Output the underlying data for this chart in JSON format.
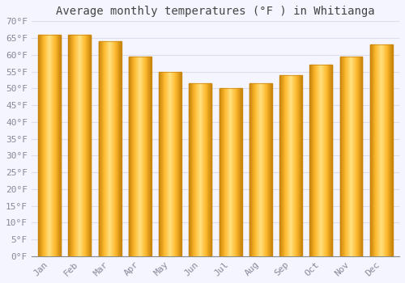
{
  "title": "Average monthly temperatures (°F ) in Whitianga",
  "months": [
    "Jan",
    "Feb",
    "Mar",
    "Apr",
    "May",
    "Jun",
    "Jul",
    "Aug",
    "Sep",
    "Oct",
    "Nov",
    "Dec"
  ],
  "values": [
    66,
    66,
    64,
    59.5,
    55,
    51.5,
    50,
    51.5,
    54,
    57,
    59.5,
    63
  ],
  "bar_color_main": "#FDB92E",
  "bar_color_edge": "#C8830A",
  "bar_color_light": "#FFDD88",
  "ylim": [
    0,
    70
  ],
  "yticks": [
    0,
    5,
    10,
    15,
    20,
    25,
    30,
    35,
    40,
    45,
    50,
    55,
    60,
    65,
    70
  ],
  "ytick_labels": [
    "0°F",
    "5°F",
    "10°F",
    "15°F",
    "20°F",
    "25°F",
    "30°F",
    "35°F",
    "40°F",
    "45°F",
    "50°F",
    "55°F",
    "60°F",
    "65°F",
    "70°F"
  ],
  "background_color": "#f5f5ff",
  "plot_bg_color": "#f5f5ff",
  "grid_color": "#ddddee",
  "title_fontsize": 10,
  "tick_fontsize": 8,
  "font_family": "monospace",
  "tick_color": "#888899"
}
